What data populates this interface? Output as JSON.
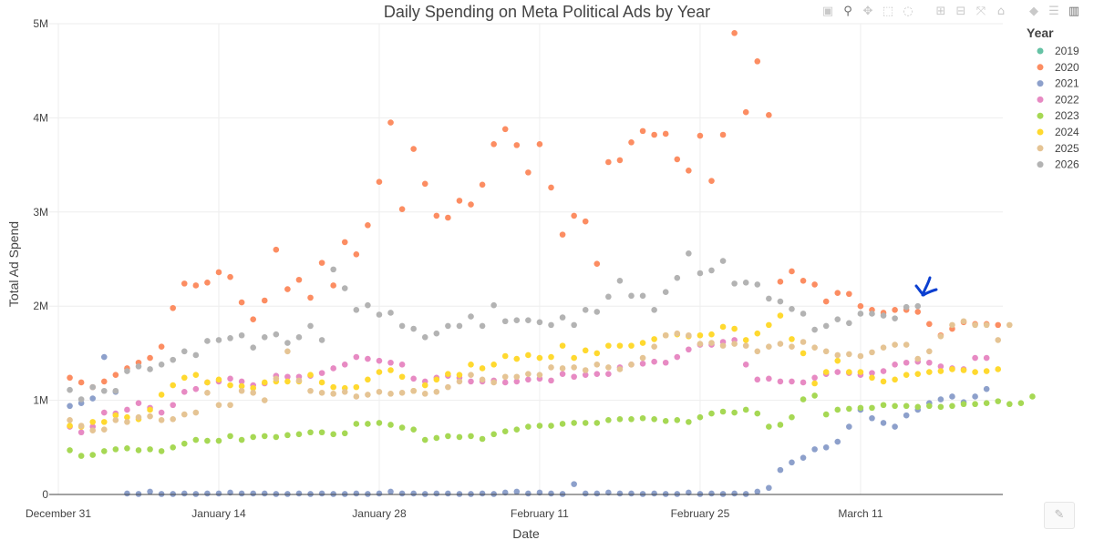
{
  "modebar": {
    "icons": [
      "camera-icon",
      "zoom-icon",
      "pan-icon",
      "box-select-icon",
      "lasso-icon",
      "zoom-in-icon",
      "zoom-out-icon",
      "autoscale-icon",
      "reset-axes-icon",
      "hover-closest-icon",
      "hover-compare-icon",
      "plotly-logo-icon"
    ],
    "glyphs": {
      "camera-icon": "▣",
      "zoom-icon": "⚲",
      "pan-icon": "✥",
      "box-select-icon": "⬚",
      "lasso-icon": "◌",
      "zoom-in-icon": "⊞",
      "zoom-out-icon": "⊟",
      "autoscale-icon": "⤧",
      "reset-axes-icon": "⌂",
      "hover-closest-icon": "◆",
      "hover-compare-icon": "☰",
      "plotly-logo-icon": "▥"
    }
  },
  "edit": {
    "icon": "pencil-icon",
    "glyph": "✎"
  },
  "chart_data": {
    "type": "scatter",
    "title": "Daily Spending on Meta Political Ads by Year",
    "xlabel": "Date",
    "ylabel": "Total Ad Spend",
    "xlim": [
      0,
      79
    ],
    "ylim": [
      0,
      5000000
    ],
    "x_ticks": [
      {
        "day": 0,
        "label": "December 31"
      },
      {
        "day": 14,
        "label": "January 14"
      },
      {
        "day": 28,
        "label": "January 28"
      },
      {
        "day": 42,
        "label": "February 11"
      },
      {
        "day": 56,
        "label": "February 25"
      },
      {
        "day": 70,
        "label": "March 11"
      }
    ],
    "y_ticks": [
      {
        "value": 0,
        "label": "0"
      },
      {
        "value": 1000000,
        "label": "1M"
      },
      {
        "value": 2000000,
        "label": "2M"
      },
      {
        "value": 3000000,
        "label": "3M"
      },
      {
        "value": 4000000,
        "label": "4M"
      },
      {
        "value": 5000000,
        "label": "5M"
      }
    ],
    "grid": true,
    "legend_title": "Year",
    "legend_position": "top-right",
    "annotation": {
      "type": "hand-drawn-arrow",
      "color": "#0b3fd0",
      "points_to_day": 74,
      "points_to_value": 1980000
    },
    "series": [
      {
        "name": "2019",
        "color": "#66c2a5",
        "start_day": 0,
        "values": []
      },
      {
        "name": "2020",
        "color": "#fc8d62",
        "start_day": 1,
        "values": [
          1240000,
          1190000,
          1140000,
          1200000,
          1270000,
          1340000,
          1400000,
          1450000,
          1570000,
          1980000,
          2240000,
          2220000,
          2250000,
          2360000,
          2310000,
          2040000,
          1860000,
          2060000,
          2600000,
          2180000,
          2280000,
          2090000,
          2460000,
          2220000,
          2680000,
          2550000,
          2860000,
          3320000,
          3950000,
          3030000,
          3670000,
          3300000,
          2960000,
          2940000,
          3120000,
          3080000,
          3290000,
          3720000,
          3880000,
          3710000,
          3420000,
          3720000,
          3260000,
          2760000,
          2960000,
          2900000,
          2450000,
          3530000,
          3550000,
          3740000,
          3860000,
          3820000,
          3830000,
          3560000,
          3440000,
          3810000,
          3330000,
          3820000,
          4900000,
          4060000,
          4600000,
          4030000,
          2260000,
          2370000,
          2270000,
          2230000,
          2050000,
          2140000,
          2130000,
          2000000,
          1960000,
          1930000,
          1960000,
          1960000,
          1940000,
          1810000,
          1690000,
          1760000,
          1830000,
          1810000,
          1810000,
          1800000
        ]
      },
      {
        "name": "2021",
        "color": "#8da0cb",
        "start_day": 1,
        "values": [
          940000,
          970000,
          1020000,
          1460000,
          1090000,
          10000,
          5000,
          30000,
          5000,
          5000,
          10000,
          5000,
          10000,
          10000,
          20000,
          10000,
          10000,
          10000,
          5000,
          5000,
          10000,
          5000,
          10000,
          5000,
          5000,
          10000,
          5000,
          10000,
          30000,
          10000,
          10000,
          5000,
          10000,
          10000,
          5000,
          5000,
          10000,
          5000,
          20000,
          30000,
          10000,
          20000,
          10000,
          5000,
          110000,
          10000,
          10000,
          20000,
          10000,
          10000,
          5000,
          10000,
          5000,
          5000,
          20000,
          5000,
          10000,
          5000,
          10000,
          5000,
          30000,
          70000,
          260000,
          340000,
          390000,
          480000,
          500000,
          560000,
          720000,
          900000,
          810000,
          760000,
          720000,
          840000,
          900000,
          970000,
          1010000,
          1040000,
          980000,
          1040000,
          1120000
        ]
      },
      {
        "name": "2022",
        "color": "#e78ac3",
        "start_day": 1,
        "values": [
          720000,
          660000,
          720000,
          870000,
          860000,
          900000,
          970000,
          920000,
          870000,
          950000,
          1090000,
          1120000,
          1190000,
          1200000,
          1230000,
          1200000,
          1160000,
          1180000,
          1260000,
          1250000,
          1250000,
          1260000,
          1290000,
          1340000,
          1380000,
          1460000,
          1440000,
          1420000,
          1400000,
          1380000,
          1230000,
          1200000,
          1240000,
          1260000,
          1240000,
          1200000,
          1200000,
          1210000,
          1190000,
          1200000,
          1220000,
          1230000,
          1210000,
          1280000,
          1250000,
          1270000,
          1280000,
          1280000,
          1350000,
          1380000,
          1390000,
          1410000,
          1400000,
          1460000,
          1540000,
          1590000,
          1590000,
          1620000,
          1640000,
          1380000,
          1220000,
          1230000,
          1200000,
          1200000,
          1190000,
          1240000,
          1280000,
          1300000,
          1290000,
          1270000,
          1290000,
          1310000,
          1380000,
          1400000,
          1410000,
          1400000,
          1360000,
          1340000,
          1330000,
          1450000,
          1450000
        ]
      },
      {
        "name": "2023",
        "color": "#a6d854",
        "start_day": 1,
        "values": [
          470000,
          410000,
          420000,
          460000,
          480000,
          490000,
          470000,
          480000,
          460000,
          500000,
          540000,
          580000,
          570000,
          570000,
          620000,
          580000,
          610000,
          620000,
          610000,
          630000,
          640000,
          660000,
          660000,
          640000,
          650000,
          750000,
          750000,
          760000,
          740000,
          710000,
          690000,
          580000,
          600000,
          620000,
          610000,
          620000,
          590000,
          640000,
          670000,
          690000,
          720000,
          730000,
          730000,
          750000,
          760000,
          760000,
          760000,
          790000,
          800000,
          800000,
          810000,
          800000,
          780000,
          790000,
          770000,
          820000,
          860000,
          880000,
          870000,
          900000,
          860000,
          720000,
          740000,
          820000,
          1010000,
          1050000,
          850000,
          900000,
          910000,
          920000,
          920000,
          950000,
          940000,
          940000,
          930000,
          940000,
          930000,
          940000,
          960000,
          960000,
          970000,
          990000,
          960000,
          970000,
          1040000
        ]
      },
      {
        "name": "2024",
        "color": "#ffd92f",
        "start_day": 1,
        "values": [
          730000,
          720000,
          770000,
          770000,
          840000,
          820000,
          800000,
          900000,
          1060000,
          1160000,
          1240000,
          1270000,
          1190000,
          1220000,
          1160000,
          1150000,
          1130000,
          1190000,
          1200000,
          1200000,
          1200000,
          1270000,
          1190000,
          1140000,
          1130000,
          1140000,
          1220000,
          1300000,
          1320000,
          1250000,
          1100000,
          1160000,
          1220000,
          1280000,
          1270000,
          1380000,
          1340000,
          1380000,
          1470000,
          1440000,
          1480000,
          1450000,
          1460000,
          1580000,
          1450000,
          1530000,
          1500000,
          1580000,
          1580000,
          1580000,
          1610000,
          1650000,
          1690000,
          1700000,
          1680000,
          1690000,
          1700000,
          1780000,
          1760000,
          1640000,
          1710000,
          1800000,
          1900000,
          1650000,
          1500000,
          1180000,
          1300000,
          1420000,
          1300000,
          1300000,
          1240000,
          1200000,
          1220000,
          1270000,
          1280000,
          1300000,
          1310000,
          1330000,
          1320000,
          1300000,
          1310000,
          1330000
        ]
      },
      {
        "name": "2025",
        "color": "#e5c494",
        "start_day": 1,
        "values": [
          790000,
          730000,
          680000,
          690000,
          790000,
          770000,
          820000,
          830000,
          790000,
          800000,
          850000,
          870000,
          1080000,
          950000,
          950000,
          1100000,
          1080000,
          1000000,
          1230000,
          1520000,
          1210000,
          1100000,
          1080000,
          1070000,
          1090000,
          1040000,
          1060000,
          1090000,
          1070000,
          1080000,
          1100000,
          1070000,
          1090000,
          1140000,
          1200000,
          1270000,
          1220000,
          1190000,
          1250000,
          1250000,
          1280000,
          1270000,
          1350000,
          1340000,
          1350000,
          1320000,
          1380000,
          1350000,
          1330000,
          1380000,
          1450000,
          1570000,
          1690000,
          1710000,
          1690000,
          1600000,
          1610000,
          1580000,
          1600000,
          1580000,
          1520000,
          1570000,
          1600000,
          1570000,
          1620000,
          1560000,
          1520000,
          1480000,
          1490000,
          1470000,
          1510000,
          1560000,
          1590000,
          1590000,
          1440000,
          1520000,
          1680000,
          1800000,
          1840000,
          1800000,
          1800000,
          1640000,
          1800000
        ]
      },
      {
        "name": "2026",
        "color": "#b3b3b3",
        "start_day": 1,
        "values": [
          1110000,
          1010000,
          1140000,
          1100000,
          1100000,
          1310000,
          1360000,
          1330000,
          1380000,
          1430000,
          1520000,
          1480000,
          1630000,
          1640000,
          1660000,
          1690000,
          1560000,
          1670000,
          1700000,
          1610000,
          1670000,
          1790000,
          1640000,
          2390000,
          2190000,
          1960000,
          2010000,
          1910000,
          1930000,
          1790000,
          1760000,
          1670000,
          1710000,
          1790000,
          1790000,
          1890000,
          1790000,
          2010000,
          1840000,
          1850000,
          1850000,
          1830000,
          1800000,
          1880000,
          1800000,
          1960000,
          1940000,
          2100000,
          2270000,
          2110000,
          2110000,
          1960000,
          2150000,
          2300000,
          2560000,
          2350000,
          2380000,
          2480000,
          2240000,
          2250000,
          2230000,
          2080000,
          2050000,
          1970000,
          1920000,
          1750000,
          1790000,
          1860000,
          1820000,
          1920000,
          1920000,
          1900000,
          1870000,
          1990000,
          2000000
        ]
      }
    ]
  }
}
